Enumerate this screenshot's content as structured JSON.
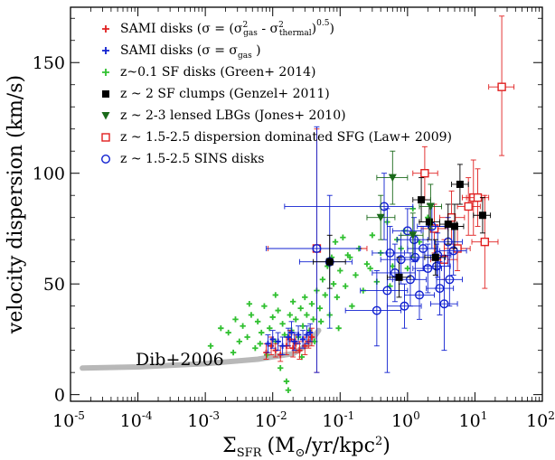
{
  "chart_data": {
    "type": "scatter",
    "title": "",
    "xlabel": "Σ_SFR (M_⊙/yr/kpc²)",
    "xlabel_parts": {
      "sym": "Σ",
      "sub": "SFR",
      "pre": "(M",
      "sun": "⊙",
      "post": "/yr/kpc",
      "sup": "2",
      "close": ")"
    },
    "ylabel": "velocity dispersion (km/s)",
    "xscale": "log",
    "xlim": [
      1e-05,
      100
    ],
    "ylim": [
      -3,
      175
    ],
    "xticks": [
      {
        "value": 1e-05,
        "base": "10",
        "exp": "-5"
      },
      {
        "value": 0.0001,
        "base": "10",
        "exp": "-4"
      },
      {
        "value": 0.001,
        "base": "10",
        "exp": "-3"
      },
      {
        "value": 0.01,
        "base": "10",
        "exp": "-2"
      },
      {
        "value": 0.1,
        "base": "10",
        "exp": "-1"
      },
      {
        "value": 1,
        "base": "10",
        "exp": "0"
      },
      {
        "value": 10,
        "base": "10",
        "exp": "1"
      },
      {
        "value": 100,
        "base": "10",
        "exp": "2"
      }
    ],
    "yticks": [
      0,
      50,
      100,
      150
    ],
    "grid": false,
    "legend_position": "top-left",
    "legend": [
      {
        "symbol": "plus",
        "color": "#e02020",
        "parts": [
          "SAMI disks (σ = (σ",
          "2",
          "gas",
          " - σ",
          "2",
          "thermal",
          ")",
          "0.5",
          ")"
        ]
      },
      {
        "symbol": "plus",
        "color": "#1020d0",
        "parts": [
          "SAMI disks (σ = σ",
          "gas",
          " )"
        ]
      },
      {
        "symbol": "plus",
        "color": "#30c030",
        "parts": [
          "z~0.1 SF disks (Green+ 2014)"
        ]
      },
      {
        "symbol": "square-filled",
        "color": "#000000",
        "parts": [
          "z ~ 2 SF clumps (Genzel+ 2011)"
        ]
      },
      {
        "symbol": "triangle-down",
        "color": "#1a6a1a",
        "parts": [
          "z ~ 2-3 lensed LBGs (Jones+ 2010)"
        ]
      },
      {
        "symbol": "square-open",
        "color": "#e02020",
        "parts": [
          "z ~ 1.5-2.5 dispersion dominated SFG (Law+ 2009)"
        ]
      },
      {
        "symbol": "circle-open",
        "color": "#1020d0",
        "parts": [
          "z ~ 1.5-2.5 SINS disks"
        ]
      }
    ],
    "annotation": {
      "text": "Dib+2006"
    },
    "dib_curve": {
      "color": "#b8b8b8",
      "points": [
        [
          1.5e-05,
          12
        ],
        [
          0.0001,
          12.5
        ],
        [
          0.001,
          14
        ],
        [
          0.006,
          16
        ],
        [
          0.02,
          18.5
        ],
        [
          0.035,
          23
        ],
        [
          0.048,
          29
        ]
      ]
    },
    "series": [
      {
        "name": "SAMI disks (σ = (σ²gas - σ²thermal)^0.5)",
        "marker": "plus",
        "color": "#e02020",
        "points": [
          {
            "x": 0.008,
            "y": 19,
            "ylo": 16,
            "yhi": 23
          },
          {
            "x": 0.0095,
            "y": 22,
            "ylo": 18,
            "yhi": 26
          },
          {
            "x": 0.011,
            "y": 20,
            "ylo": 17,
            "yhi": 23
          },
          {
            "x": 0.013,
            "y": 18,
            "ylo": 15,
            "yhi": 22
          },
          {
            "x": 0.016,
            "y": 22,
            "ylo": 18,
            "yhi": 26
          },
          {
            "x": 0.018,
            "y": 25,
            "ylo": 21,
            "yhi": 29
          },
          {
            "x": 0.02,
            "y": 21,
            "ylo": 17,
            "yhi": 25
          },
          {
            "x": 0.022,
            "y": 23,
            "ylo": 19,
            "yhi": 27
          },
          {
            "x": 0.025,
            "y": 20,
            "ylo": 16,
            "yhi": 24
          },
          {
            "x": 0.03,
            "y": 22,
            "ylo": 18,
            "yhi": 26
          },
          {
            "x": 0.034,
            "y": 24,
            "ylo": 21,
            "yhi": 27
          },
          {
            "x": 0.038,
            "y": 26,
            "ylo": 22,
            "yhi": 30
          }
        ]
      },
      {
        "name": "SAMI disks (σ = σgas)",
        "marker": "plus",
        "color": "#1020d0",
        "points": [
          {
            "x": 0.0085,
            "y": 23,
            "ylo": 19,
            "yhi": 27
          },
          {
            "x": 0.01,
            "y": 25,
            "ylo": 21,
            "yhi": 29
          },
          {
            "x": 0.012,
            "y": 24,
            "ylo": 20,
            "yhi": 28
          },
          {
            "x": 0.014,
            "y": 22,
            "ylo": 18,
            "yhi": 26
          },
          {
            "x": 0.017,
            "y": 26,
            "ylo": 22,
            "yhi": 30
          },
          {
            "x": 0.019,
            "y": 28,
            "ylo": 24,
            "yhi": 33
          },
          {
            "x": 0.021,
            "y": 24,
            "ylo": 20,
            "yhi": 28
          },
          {
            "x": 0.024,
            "y": 27,
            "ylo": 23,
            "yhi": 31
          },
          {
            "x": 0.028,
            "y": 25,
            "ylo": 21,
            "yhi": 29
          },
          {
            "x": 0.032,
            "y": 27,
            "ylo": 23,
            "yhi": 31
          },
          {
            "x": 0.036,
            "y": 28,
            "ylo": 24,
            "yhi": 32
          }
        ]
      },
      {
        "name": "z~0.1 SF disks (Green+ 2014)",
        "marker": "plus",
        "color": "#30c030",
        "points": [
          {
            "x": 0.0017,
            "y": 30
          },
          {
            "x": 0.0022,
            "y": 28
          },
          {
            "x": 0.0028,
            "y": 34
          },
          {
            "x": 0.0032,
            "y": 24
          },
          {
            "x": 0.0036,
            "y": 31
          },
          {
            "x": 0.0042,
            "y": 26
          },
          {
            "x": 0.0048,
            "y": 36
          },
          {
            "x": 0.0055,
            "y": 21
          },
          {
            "x": 0.006,
            "y": 33
          },
          {
            "x": 0.0068,
            "y": 28
          },
          {
            "x": 0.0075,
            "y": 40
          },
          {
            "x": 0.0082,
            "y": 18
          },
          {
            "x": 0.009,
            "y": 30
          },
          {
            "x": 0.01,
            "y": 35
          },
          {
            "x": 0.011,
            "y": 24
          },
          {
            "x": 0.012,
            "y": 38
          },
          {
            "x": 0.013,
            "y": 12
          },
          {
            "x": 0.014,
            "y": 32
          },
          {
            "x": 0.015,
            "y": 27
          },
          {
            "x": 0.016,
            "y": 6
          },
          {
            "x": 0.017,
            "y": 2
          },
          {
            "x": 0.018,
            "y": 36
          },
          {
            "x": 0.019,
            "y": 29
          },
          {
            "x": 0.02,
            "y": 42
          },
          {
            "x": 0.022,
            "y": 34
          },
          {
            "x": 0.024,
            "y": 26
          },
          {
            "x": 0.026,
            "y": 39
          },
          {
            "x": 0.028,
            "y": 31
          },
          {
            "x": 0.03,
            "y": 44
          },
          {
            "x": 0.032,
            "y": 36
          },
          {
            "x": 0.035,
            "y": 29
          },
          {
            "x": 0.038,
            "y": 41
          },
          {
            "x": 0.04,
            "y": 34
          },
          {
            "x": 0.045,
            "y": 47
          },
          {
            "x": 0.05,
            "y": 39
          },
          {
            "x": 0.055,
            "y": 52
          },
          {
            "x": 0.06,
            "y": 45
          },
          {
            "x": 0.065,
            "y": 58
          },
          {
            "x": 0.07,
            "y": 36
          },
          {
            "x": 0.075,
            "y": 62
          },
          {
            "x": 0.08,
            "y": 50
          },
          {
            "x": 0.085,
            "y": 69
          },
          {
            "x": 0.09,
            "y": 44
          },
          {
            "x": 0.1,
            "y": 56
          },
          {
            "x": 0.11,
            "y": 71
          },
          {
            "x": 0.12,
            "y": 49
          },
          {
            "x": 0.13,
            "y": 63
          },
          {
            "x": 0.15,
            "y": 40
          },
          {
            "x": 0.17,
            "y": 54
          },
          {
            "x": 0.19,
            "y": 66
          },
          {
            "x": 0.22,
            "y": 47
          },
          {
            "x": 0.25,
            "y": 59
          },
          {
            "x": 0.3,
            "y": 72
          },
          {
            "x": 0.35,
            "y": 51
          },
          {
            "x": 0.4,
            "y": 64
          },
          {
            "x": 0.5,
            "y": 78
          },
          {
            "x": 0.6,
            "y": 58
          },
          {
            "x": 0.7,
            "y": 70
          },
          {
            "x": 0.8,
            "y": 66
          },
          {
            "x": 0.9,
            "y": 74
          },
          {
            "x": 1.0,
            "y": 57
          },
          {
            "x": 1.2,
            "y": 84
          },
          {
            "x": 1.5,
            "y": 69
          },
          {
            "x": 2.0,
            "y": 80
          },
          {
            "x": 0.0012,
            "y": 22
          },
          {
            "x": 0.0026,
            "y": 19
          },
          {
            "x": 0.0045,
            "y": 41
          },
          {
            "x": 0.0065,
            "y": 23
          },
          {
            "x": 0.011,
            "y": 45
          },
          {
            "x": 0.027,
            "y": 17
          },
          {
            "x": 0.042,
            "y": 24
          },
          {
            "x": 0.052,
            "y": 33
          },
          {
            "x": 0.095,
            "y": 30
          },
          {
            "x": 0.14,
            "y": 62
          },
          {
            "x": 0.28,
            "y": 57
          },
          {
            "x": 0.55,
            "y": 49
          }
        ]
      },
      {
        "name": "z ~ 2 SF clumps (Genzel+ 2011)",
        "marker": "square-filled",
        "color": "#000000",
        "points": [
          {
            "x": 0.07,
            "y": 60,
            "xlo": 0.04,
            "xhi": 0.12,
            "ylo": 48,
            "yhi": 72
          },
          {
            "x": 0.75,
            "y": 53,
            "xlo": 0.5,
            "xhi": 1.1,
            "ylo": 44,
            "yhi": 62
          },
          {
            "x": 1.6,
            "y": 88,
            "xlo": 1.2,
            "xhi": 2.2,
            "ylo": 78,
            "yhi": 98
          },
          {
            "x": 2.1,
            "y": 78,
            "xlo": 1.5,
            "xhi": 3.0,
            "ylo": 70,
            "yhi": 86
          },
          {
            "x": 2.6,
            "y": 62,
            "xlo": 1.8,
            "xhi": 3.6,
            "ylo": 54,
            "yhi": 70
          },
          {
            "x": 4.0,
            "y": 77,
            "xlo": 3.0,
            "xhi": 5.4,
            "ylo": 68,
            "yhi": 86
          },
          {
            "x": 5.0,
            "y": 76,
            "xlo": 3.6,
            "xhi": 6.8,
            "ylo": 66,
            "yhi": 86
          },
          {
            "x": 6.0,
            "y": 95,
            "xlo": 4.5,
            "xhi": 8.0,
            "ylo": 86,
            "yhi": 104
          },
          {
            "x": 13.0,
            "y": 81,
            "xlo": 9.5,
            "xhi": 17.0,
            "ylo": 73,
            "yhi": 89
          }
        ]
      },
      {
        "name": "z ~ 2-3 lensed LBGs (Jones+ 2010)",
        "marker": "triangle-down",
        "color": "#1a6a1a",
        "points": [
          {
            "x": 0.6,
            "y": 98,
            "xlo": 0.35,
            "xhi": 1.0,
            "ylo": 86,
            "yhi": 110
          },
          {
            "x": 0.4,
            "y": 80,
            "xlo": 0.25,
            "xhi": 0.65,
            "ylo": 70,
            "yhi": 90
          },
          {
            "x": 1.2,
            "y": 72,
            "xlo": 0.8,
            "xhi": 1.7,
            "ylo": 62,
            "yhi": 82
          },
          {
            "x": 2.2,
            "y": 85,
            "xlo": 1.5,
            "xhi": 3.2,
            "ylo": 75,
            "yhi": 95
          }
        ]
      },
      {
        "name": "z ~ 1.5-2.5 dispersion dominated SFG (Law+ 2009)",
        "marker": "square-open",
        "color": "#e02020",
        "points": [
          {
            "x": 0.045,
            "y": 66,
            "xlo": 0.0085,
            "xhi": 0.25,
            "ylo": 10,
            "yhi": 120
          },
          {
            "x": 1.8,
            "y": 100,
            "xlo": 1.2,
            "xhi": 2.8,
            "ylo": 88,
            "yhi": 112
          },
          {
            "x": 2.5,
            "y": 75,
            "xlo": 1.6,
            "xhi": 4.0,
            "ylo": 64,
            "yhi": 86
          },
          {
            "x": 3.5,
            "y": 61,
            "xlo": 2.2,
            "xhi": 5.5,
            "ylo": 52,
            "yhi": 70
          },
          {
            "x": 4.5,
            "y": 80,
            "xlo": 3.0,
            "xhi": 7.0,
            "ylo": 68,
            "yhi": 92
          },
          {
            "x": 5.5,
            "y": 66,
            "xlo": 3.5,
            "xhi": 8.5,
            "ylo": 56,
            "yhi": 76
          },
          {
            "x": 8.0,
            "y": 85,
            "xlo": 5.5,
            "xhi": 12.0,
            "ylo": 72,
            "yhi": 98
          },
          {
            "x": 9.5,
            "y": 89,
            "xlo": 6.5,
            "xhi": 14.0,
            "ylo": 72,
            "yhi": 106
          },
          {
            "x": 11.0,
            "y": 89,
            "xlo": 7.5,
            "xhi": 16.0,
            "ylo": 76,
            "yhi": 102
          },
          {
            "x": 14.0,
            "y": 69,
            "xlo": 9.0,
            "xhi": 22.0,
            "ylo": 48,
            "yhi": 90
          },
          {
            "x": 25.0,
            "y": 139,
            "xlo": 16.0,
            "xhi": 38.0,
            "ylo": 108,
            "yhi": 171
          }
        ]
      },
      {
        "name": "z ~ 1.5-2.5 SINS disks",
        "marker": "circle-open",
        "color": "#1020d0",
        "points": [
          {
            "x": 0.045,
            "y": 66,
            "xlo": 0.008,
            "xhi": 0.2,
            "ylo": 10,
            "yhi": 121
          },
          {
            "x": 0.07,
            "y": 60,
            "xlo": 0.025,
            "xhi": 0.15,
            "ylo": 30,
            "yhi": 90
          },
          {
            "x": 0.35,
            "y": 38,
            "xlo": 0.12,
            "xhi": 0.8,
            "ylo": 22,
            "yhi": 56
          },
          {
            "x": 0.45,
            "y": 85,
            "xlo": 0.015,
            "xhi": 1.2,
            "ylo": 70,
            "yhi": 100
          },
          {
            "x": 0.5,
            "y": 47,
            "xlo": 0.2,
            "xhi": 1.0,
            "ylo": 10,
            "yhi": 84
          },
          {
            "x": 0.55,
            "y": 64,
            "xlo": 0.3,
            "xhi": 0.9,
            "ylo": 52,
            "yhi": 76
          },
          {
            "x": 0.65,
            "y": 55,
            "xlo": 0.3,
            "xhi": 1.3,
            "ylo": 42,
            "yhi": 68
          },
          {
            "x": 0.8,
            "y": 61,
            "xlo": 0.4,
            "xhi": 1.4,
            "ylo": 50,
            "yhi": 72
          },
          {
            "x": 0.9,
            "y": 40,
            "xlo": 0.5,
            "xhi": 1.6,
            "ylo": 30,
            "yhi": 50
          },
          {
            "x": 1.0,
            "y": 74,
            "xlo": 0.6,
            "xhi": 1.6,
            "ylo": 64,
            "yhi": 84
          },
          {
            "x": 1.1,
            "y": 52,
            "xlo": 0.6,
            "xhi": 1.9,
            "ylo": 40,
            "yhi": 64
          },
          {
            "x": 1.3,
            "y": 62,
            "xlo": 0.8,
            "xhi": 2.2,
            "ylo": 52,
            "yhi": 72
          },
          {
            "x": 1.5,
            "y": 45,
            "xlo": 0.9,
            "xhi": 2.5,
            "ylo": 34,
            "yhi": 56
          },
          {
            "x": 1.7,
            "y": 66,
            "xlo": 1.0,
            "xhi": 2.8,
            "ylo": 56,
            "yhi": 76
          },
          {
            "x": 2.0,
            "y": 57,
            "xlo": 1.2,
            "xhi": 3.2,
            "ylo": 46,
            "yhi": 68
          },
          {
            "x": 2.3,
            "y": 76,
            "xlo": 1.4,
            "xhi": 3.8,
            "ylo": 66,
            "yhi": 86
          },
          {
            "x": 2.7,
            "y": 58,
            "xlo": 1.7,
            "xhi": 4.3,
            "ylo": 48,
            "yhi": 68
          },
          {
            "x": 3.0,
            "y": 48,
            "xlo": 1.9,
            "xhi": 4.8,
            "ylo": 36,
            "yhi": 60
          },
          {
            "x": 3.5,
            "y": 41,
            "xlo": 2.2,
            "xhi": 5.5,
            "ylo": 20,
            "yhi": 62
          },
          {
            "x": 4.0,
            "y": 69,
            "xlo": 2.5,
            "xhi": 6.5,
            "ylo": 58,
            "yhi": 80
          },
          {
            "x": 4.2,
            "y": 52,
            "xlo": 2.7,
            "xhi": 6.5,
            "ylo": 40,
            "yhi": 64
          },
          {
            "x": 4.8,
            "y": 65,
            "xlo": 3.0,
            "xhi": 7.5,
            "ylo": 54,
            "yhi": 76
          },
          {
            "x": 1.25,
            "y": 70,
            "xlo": 0.7,
            "xhi": 2.0,
            "ylo": 60,
            "yhi": 80
          },
          {
            "x": 2.8,
            "y": 63,
            "xlo": 1.8,
            "xhi": 4.4,
            "ylo": 53,
            "yhi": 73
          }
        ]
      }
    ]
  }
}
